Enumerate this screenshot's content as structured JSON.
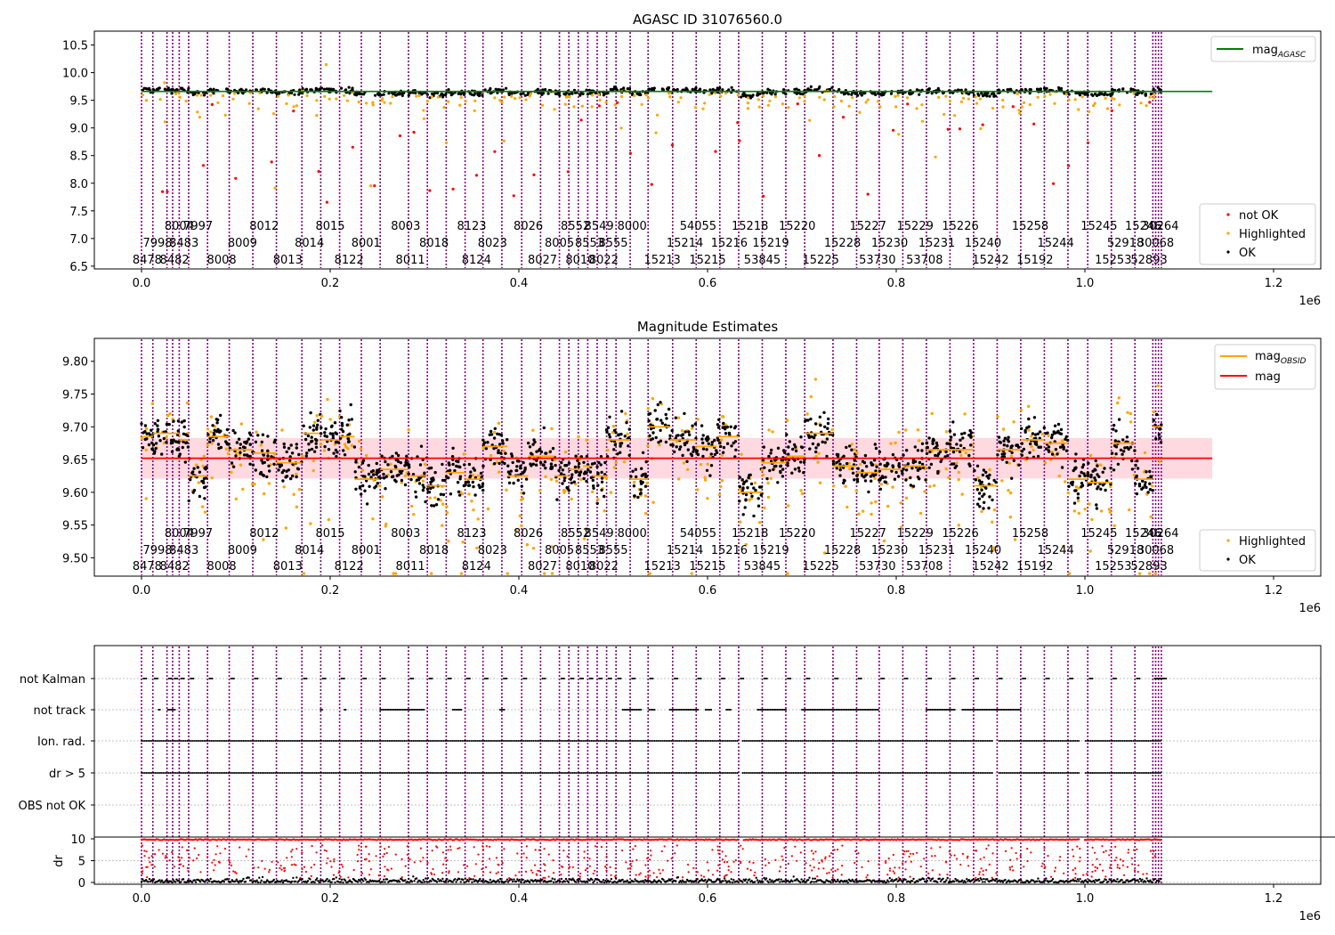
{
  "figure": {
    "background": "#ffffff"
  },
  "colors": {
    "ok": "#000000",
    "highlighted": "#ffa500",
    "not_ok": "#ff0000",
    "mag_agasc": "#008000",
    "mag": "#ff0000",
    "mag_obsid": "#ffa500",
    "band": "#ffc0cb",
    "obsid_line": "#800080",
    "gridline": "#b0b0b0"
  },
  "obsids": {
    "row_top": [
      "8004",
      "7997",
      "8012",
      "8015",
      "8003",
      "8123",
      "8026",
      "8552",
      "8549",
      "8000",
      "54055",
      "15218",
      "15220",
      "15227",
      "15229",
      "15226",
      "15258",
      "15245",
      "15246",
      "30264"
    ],
    "row_top_x": [
      0.04,
      0.06,
      0.13,
      0.2,
      0.28,
      0.35,
      0.41,
      0.46,
      0.485,
      0.52,
      0.59,
      0.645,
      0.695,
      0.77,
      0.82,
      0.868,
      0.942,
      1.015,
      1.062,
      1.08
    ],
    "row_mid": [
      "7998",
      "8483",
      "8009",
      "8014",
      "8001",
      "8018",
      "8023",
      "8005",
      "8553",
      "8555",
      "15214",
      "15216",
      "15219",
      "15228",
      "15230",
      "15231",
      "15240",
      "15244",
      "52918",
      "30068"
    ],
    "row_mid_x": [
      0.017,
      0.045,
      0.107,
      0.178,
      0.238,
      0.31,
      0.372,
      0.443,
      0.475,
      0.5,
      0.576,
      0.623,
      0.667,
      0.743,
      0.793,
      0.843,
      0.892,
      0.969,
      1.043,
      1.075
    ],
    "row_bot": [
      "8478",
      "8482",
      "8008",
      "8013",
      "8122",
      "8011",
      "8124",
      "8027",
      "8010",
      "8022",
      "15213",
      "15215",
      "53845",
      "15225",
      "53730",
      "53708",
      "15242",
      "15192",
      "15253",
      "52893"
    ],
    "row_bot_x": [
      0.006,
      0.035,
      0.085,
      0.155,
      0.22,
      0.285,
      0.355,
      0.425,
      0.465,
      0.49,
      0.552,
      0.6,
      0.658,
      0.72,
      0.78,
      0.83,
      0.9,
      0.947,
      1.03,
      1.068
    ],
    "line_x": [
      0.0,
      0.012,
      0.027,
      0.033,
      0.04,
      0.05,
      0.07,
      0.093,
      0.118,
      0.143,
      0.17,
      0.19,
      0.21,
      0.233,
      0.253,
      0.283,
      0.303,
      0.323,
      0.343,
      0.362,
      0.382,
      0.403,
      0.423,
      0.443,
      0.453,
      0.463,
      0.473,
      0.483,
      0.493,
      0.503,
      0.518,
      0.537,
      0.563,
      0.588,
      0.613,
      0.633,
      0.658,
      0.683,
      0.703,
      0.733,
      0.758,
      0.782,
      0.807,
      0.832,
      0.857,
      0.882,
      0.907,
      0.932,
      0.957,
      0.982,
      1.003,
      1.028,
      1.053,
      1.072,
      1.075,
      1.078,
      1.081
    ]
  },
  "chart_data": [
    {
      "id": "top",
      "type": "scatter",
      "title": "AGASC ID 31076560.0",
      "xlim": [
        -0.05,
        1.25
      ],
      "ylim": [
        6.45,
        10.75
      ],
      "x_scale_label": "1e6",
      "xticks": [
        0.0,
        0.2,
        0.4,
        0.6,
        0.8,
        1.0,
        1.2
      ],
      "xtick_labels": [
        "0.0",
        "0.2",
        "0.4",
        "0.6",
        "0.8",
        "1.0",
        "1.2"
      ],
      "yticks": [
        6.5,
        7.0,
        7.5,
        8.0,
        8.5,
        9.0,
        9.5,
        10.0,
        10.5
      ],
      "ytick_labels": [
        "6.5",
        "7.0",
        "7.5",
        "8.0",
        "8.5",
        "9.0",
        "9.5",
        "10.0",
        "10.5"
      ],
      "mag_agasc": 9.66,
      "mag_agasc_range": [
        0.0,
        1.135
      ],
      "legend_upper": {
        "position": "upper right",
        "entries": [
          {
            "label": "mag",
            "sub": "AGASC"
          }
        ]
      },
      "legend_lower": {
        "position": "lower right",
        "entries": [
          "not OK",
          "Highlighted",
          "OK"
        ]
      }
    },
    {
      "id": "mid",
      "type": "scatter",
      "title": "Magnitude Estimates",
      "xlim": [
        -0.05,
        1.25
      ],
      "ylim": [
        9.472,
        9.835
      ],
      "x_scale_label": "1e6",
      "xticks": [
        0.0,
        0.2,
        0.4,
        0.6,
        0.8,
        1.0,
        1.2
      ],
      "xtick_labels": [
        "0.0",
        "0.2",
        "0.4",
        "0.6",
        "0.8",
        "1.0",
        "1.2"
      ],
      "yticks": [
        9.5,
        9.55,
        9.6,
        9.65,
        9.7,
        9.75,
        9.8
      ],
      "ytick_labels": [
        "9.50",
        "9.55",
        "9.60",
        "9.65",
        "9.70",
        "9.75",
        "9.80"
      ],
      "mag": 9.652,
      "mag_band": [
        9.621,
        9.683
      ],
      "mag_range": [
        0.0,
        1.135
      ],
      "obsid_segments": [
        {
          "x0": 0.0,
          "x1": 0.012,
          "mag": 9.685
        },
        {
          "x0": 0.012,
          "x1": 0.027,
          "mag": 9.69
        },
        {
          "x0": 0.027,
          "x1": 0.04,
          "mag": 9.69
        },
        {
          "x0": 0.04,
          "x1": 0.05,
          "mag": 9.68
        },
        {
          "x0": 0.05,
          "x1": 0.07,
          "mag": 9.625
        },
        {
          "x0": 0.07,
          "x1": 0.093,
          "mag": 9.685
        },
        {
          "x0": 0.093,
          "x1": 0.118,
          "mag": 9.665
        },
        {
          "x0": 0.118,
          "x1": 0.143,
          "mag": 9.66
        },
        {
          "x0": 0.143,
          "x1": 0.17,
          "mag": 9.645
        },
        {
          "x0": 0.17,
          "x1": 0.19,
          "mag": 9.69
        },
        {
          "x0": 0.19,
          "x1": 0.21,
          "mag": 9.68
        },
        {
          "x0": 0.21,
          "x1": 0.226,
          "mag": 9.685
        },
        {
          "x0": 0.226,
          "x1": 0.253,
          "mag": 9.62
        },
        {
          "x0": 0.253,
          "x1": 0.283,
          "mag": 9.635
        },
        {
          "x0": 0.283,
          "x1": 0.303,
          "mag": 9.625
        },
        {
          "x0": 0.303,
          "x1": 0.323,
          "mag": 9.61
        },
        {
          "x0": 0.323,
          "x1": 0.343,
          "mag": 9.63
        },
        {
          "x0": 0.343,
          "x1": 0.362,
          "mag": 9.62
        },
        {
          "x0": 0.362,
          "x1": 0.388,
          "mag": 9.67
        },
        {
          "x0": 0.388,
          "x1": 0.41,
          "mag": 9.625
        },
        {
          "x0": 0.41,
          "x1": 0.438,
          "mag": 9.655
        },
        {
          "x0": 0.438,
          "x1": 0.453,
          "mag": 9.625
        },
        {
          "x0": 0.453,
          "x1": 0.468,
          "mag": 9.635
        },
        {
          "x0": 0.468,
          "x1": 0.478,
          "mag": 9.64
        },
        {
          "x0": 0.478,
          "x1": 0.493,
          "mag": 9.625
        },
        {
          "x0": 0.493,
          "x1": 0.518,
          "mag": 9.68
        },
        {
          "x0": 0.518,
          "x1": 0.537,
          "mag": 9.62
        },
        {
          "x0": 0.537,
          "x1": 0.56,
          "mag": 9.7
        },
        {
          "x0": 0.56,
          "x1": 0.588,
          "mag": 9.68
        },
        {
          "x0": 0.588,
          "x1": 0.61,
          "mag": 9.67
        },
        {
          "x0": 0.61,
          "x1": 0.633,
          "mag": 9.685
        },
        {
          "x0": 0.633,
          "x1": 0.658,
          "mag": 9.6
        },
        {
          "x0": 0.658,
          "x1": 0.683,
          "mag": 9.645
        },
        {
          "x0": 0.683,
          "x1": 0.703,
          "mag": 9.655
        },
        {
          "x0": 0.703,
          "x1": 0.733,
          "mag": 9.69
        },
        {
          "x0": 0.733,
          "x1": 0.758,
          "mag": 9.64
        },
        {
          "x0": 0.758,
          "x1": 0.782,
          "mag": 9.63
        },
        {
          "x0": 0.782,
          "x1": 0.807,
          "mag": 9.635
        },
        {
          "x0": 0.807,
          "x1": 0.832,
          "mag": 9.64
        },
        {
          "x0": 0.832,
          "x1": 0.857,
          "mag": 9.665
        },
        {
          "x0": 0.857,
          "x1": 0.882,
          "mag": 9.665
        },
        {
          "x0": 0.882,
          "x1": 0.907,
          "mag": 9.61
        },
        {
          "x0": 0.907,
          "x1": 0.932,
          "mag": 9.665
        },
        {
          "x0": 0.932,
          "x1": 0.957,
          "mag": 9.68
        },
        {
          "x0": 0.957,
          "x1": 0.982,
          "mag": 9.675
        },
        {
          "x0": 0.982,
          "x1": 1.003,
          "mag": 9.62
        },
        {
          "x0": 1.003,
          "x1": 1.028,
          "mag": 9.615
        },
        {
          "x0": 1.028,
          "x1": 1.053,
          "mag": 9.675
        },
        {
          "x0": 1.053,
          "x1": 1.072,
          "mag": 9.62
        },
        {
          "x0": 1.072,
          "x1": 1.081,
          "mag": 9.7
        }
      ],
      "legend_upper": {
        "position": "upper right",
        "entries": [
          {
            "label": "mag",
            "sub": "OBSID"
          },
          {
            "label": "mag"
          }
        ]
      },
      "legend_lower": {
        "position": "lower right",
        "entries": [
          "Highlighted",
          "OK"
        ]
      }
    },
    {
      "id": "flags",
      "type": "scatter",
      "xlim": [
        -0.05,
        1.25
      ],
      "x_scale_label": "1e6",
      "xticks": [
        0.0,
        0.2,
        0.4,
        0.6,
        0.8,
        1.0,
        1.2
      ],
      "xtick_labels": [
        "0.0",
        "0.2",
        "0.4",
        "0.6",
        "0.8",
        "1.0",
        "1.2"
      ],
      "flag_labels": [
        "not Kalman",
        "not track",
        "Ion. rad.",
        "dr > 5",
        "OBS not OK"
      ],
      "dr_ylabel": "dr",
      "dr_yticks": [
        0,
        5,
        10
      ],
      "dr_ytick_labels": [
        "0",
        "5",
        "10"
      ],
      "dr_ylim": [
        -0.6,
        10.4
      ]
    }
  ]
}
